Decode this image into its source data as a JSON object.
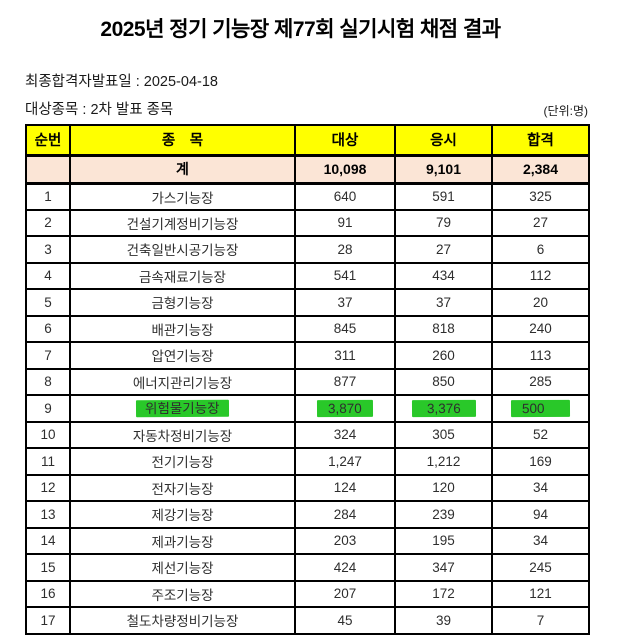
{
  "title": "2025년 정기 기능장 제77회 실기시험 채점 결과",
  "meta": {
    "final_pass_announce_date": "최종합격자발표일 : 2025-04-18",
    "target_subjects": "대상종목 : 2차 발표 종목",
    "unit_label": "(단위:명)"
  },
  "colors": {
    "header_bg": "#ffff00",
    "total_bg": "#fbe5d6",
    "highlight": "#29c829"
  },
  "table": {
    "columns": {
      "no": "순번",
      "subject": "종　목",
      "target": "대상",
      "applied": "응시",
      "passed": "합격"
    },
    "total_row": {
      "no": "",
      "name": "계",
      "target": "10,098",
      "applied": "9,101",
      "passed": "2,384"
    },
    "rows": [
      {
        "no": "1",
        "name": "가스기능장",
        "target": "640",
        "applied": "591",
        "passed": "325"
      },
      {
        "no": "2",
        "name": "건설기계정비기능장",
        "target": "91",
        "applied": "79",
        "passed": "27"
      },
      {
        "no": "3",
        "name": "건축일반시공기능장",
        "target": "28",
        "applied": "27",
        "passed": "6"
      },
      {
        "no": "4",
        "name": "금속재료기능장",
        "target": "541",
        "applied": "434",
        "passed": "112"
      },
      {
        "no": "5",
        "name": "금형기능장",
        "target": "37",
        "applied": "37",
        "passed": "20"
      },
      {
        "no": "6",
        "name": "배관기능장",
        "target": "845",
        "applied": "818",
        "passed": "240"
      },
      {
        "no": "7",
        "name": "압연기능장",
        "target": "311",
        "applied": "260",
        "passed": "113"
      },
      {
        "no": "8",
        "name": "에너지관리기능장",
        "target": "877",
        "applied": "850",
        "passed": "285"
      },
      {
        "no": "9",
        "name": "위험물기능장",
        "target": "3,870",
        "applied": "3,376",
        "passed": "500",
        "highlighted": true
      },
      {
        "no": "10",
        "name": "자동차정비기능장",
        "target": "324",
        "applied": "305",
        "passed": "52"
      },
      {
        "no": "11",
        "name": "전기기능장",
        "target": "1,247",
        "applied": "1,212",
        "passed": "169"
      },
      {
        "no": "12",
        "name": "전자기능장",
        "target": "124",
        "applied": "120",
        "passed": "34"
      },
      {
        "no": "13",
        "name": "제강기능장",
        "target": "284",
        "applied": "239",
        "passed": "94"
      },
      {
        "no": "14",
        "name": "제과기능장",
        "target": "203",
        "applied": "195",
        "passed": "34"
      },
      {
        "no": "15",
        "name": "제선기능장",
        "target": "424",
        "applied": "347",
        "passed": "245"
      },
      {
        "no": "16",
        "name": "주조기능장",
        "target": "207",
        "applied": "172",
        "passed": "121"
      },
      {
        "no": "17",
        "name": "철도차량정비기능장",
        "target": "45",
        "applied": "39",
        "passed": "7"
      }
    ]
  }
}
